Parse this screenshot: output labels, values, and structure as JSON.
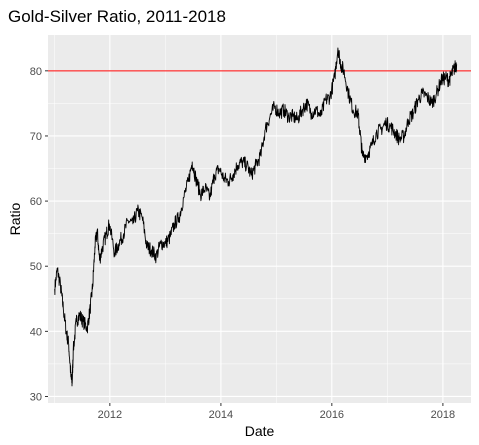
{
  "chart_data": {
    "type": "line",
    "title": "Gold-Silver Ratio, 2011-2018",
    "xlabel": "Date",
    "ylabel": "Ratio",
    "xlim": [
      "2010-11-20",
      "2018-07-05"
    ],
    "ylim": [
      29.0,
      85.5
    ],
    "x_ticks": [
      "2012",
      "2014",
      "2016",
      "2018"
    ],
    "x_tick_dates": [
      "2012-01-01",
      "2014-01-01",
      "2016-01-01",
      "2018-01-01"
    ],
    "y_ticks": [
      30,
      40,
      50,
      60,
      70,
      80
    ],
    "grid": true,
    "background": "#ebebeb",
    "gridline_color": "#ffffff",
    "line_color": "#000000",
    "reference_line": {
      "y": 80,
      "color": "#ff0000"
    },
    "series": [
      {
        "x": [
          "2011-01-03",
          "2011-01-20",
          "2011-02-10",
          "2011-03-01",
          "2011-03-20",
          "2011-04-05",
          "2011-04-20",
          "2011-04-28",
          "2011-05-05",
          "2011-05-25",
          "2011-06-15",
          "2011-07-10",
          "2011-08-05",
          "2011-08-25",
          "2011-09-10",
          "2011-09-25",
          "2011-10-10",
          "2011-10-25",
          "2011-11-15",
          "2011-12-10",
          "2011-12-29",
          "2012-02-01",
          "2012-03-01",
          "2012-04-01",
          "2012-05-01",
          "2012-06-01",
          "2012-07-01",
          "2012-08-01",
          "2012-09-01",
          "2012-10-01",
          "2012-11-01",
          "2012-12-01",
          "2013-01-01",
          "2013-02-01",
          "2013-03-01",
          "2013-04-01",
          "2013-05-01",
          "2013-06-01",
          "2013-06-26",
          "2013-07-20",
          "2013-08-20",
          "2013-09-20",
          "2013-10-20",
          "2013-11-20",
          "2013-12-20",
          "2014-01-20",
          "2014-02-20",
          "2014-03-20",
          "2014-04-20",
          "2014-05-20",
          "2014-06-20",
          "2014-07-20",
          "2014-08-20",
          "2014-09-20",
          "2014-10-20",
          "2014-11-20",
          "2014-12-20",
          "2015-01-20",
          "2015-02-20",
          "2015-03-20",
          "2015-04-20",
          "2015-05-20",
          "2015-06-20",
          "2015-07-20",
          "2015-08-20",
          "2015-09-20",
          "2015-10-20",
          "2015-11-20",
          "2015-12-20",
          "2016-01-20",
          "2016-02-10",
          "2016-02-29",
          "2016-03-20",
          "2016-04-20",
          "2016-05-20",
          "2016-06-20",
          "2016-07-05",
          "2016-07-20",
          "2016-08-20",
          "2016-09-20",
          "2016-10-20",
          "2016-11-20",
          "2016-12-20",
          "2017-01-20",
          "2017-02-20",
          "2017-03-20",
          "2017-04-20",
          "2017-05-20",
          "2017-06-20",
          "2017-07-20",
          "2017-08-20",
          "2017-09-20",
          "2017-10-20",
          "2017-11-20",
          "2017-12-20",
          "2018-01-20",
          "2018-02-10",
          "2018-02-28",
          "2018-03-20",
          "2018-04-02"
        ],
        "values": [
          46.5,
          49.5,
          47.0,
          43.5,
          40.0,
          38.0,
          33.0,
          32.0,
          37.0,
          41.5,
          42.5,
          41.5,
          40.5,
          43.5,
          47.0,
          53.0,
          55.5,
          51.0,
          53.0,
          55.0,
          56.5,
          52.0,
          53.5,
          55.0,
          57.0,
          56.5,
          58.5,
          57.5,
          53.0,
          52.5,
          51.5,
          53.5,
          53.5,
          54.5,
          56.5,
          57.5,
          60.5,
          63.0,
          66.0,
          63.5,
          61.0,
          62.0,
          60.5,
          64.0,
          65.0,
          63.5,
          63.0,
          64.0,
          65.5,
          66.0,
          65.5,
          64.0,
          65.5,
          67.0,
          71.0,
          73.0,
          74.5,
          73.5,
          74.0,
          73.0,
          73.0,
          72.5,
          74.0,
          75.0,
          73.5,
          74.0,
          73.0,
          75.5,
          76.0,
          79.0,
          83.5,
          81.0,
          80.0,
          76.5,
          74.0,
          73.5,
          70.5,
          67.0,
          67.0,
          68.5,
          70.5,
          71.0,
          72.0,
          71.5,
          70.5,
          69.5,
          70.0,
          72.5,
          73.5,
          75.5,
          76.5,
          76.0,
          75.0,
          76.5,
          78.5,
          79.0,
          78.5,
          79.5,
          80.5,
          81.0
        ]
      }
    ]
  }
}
